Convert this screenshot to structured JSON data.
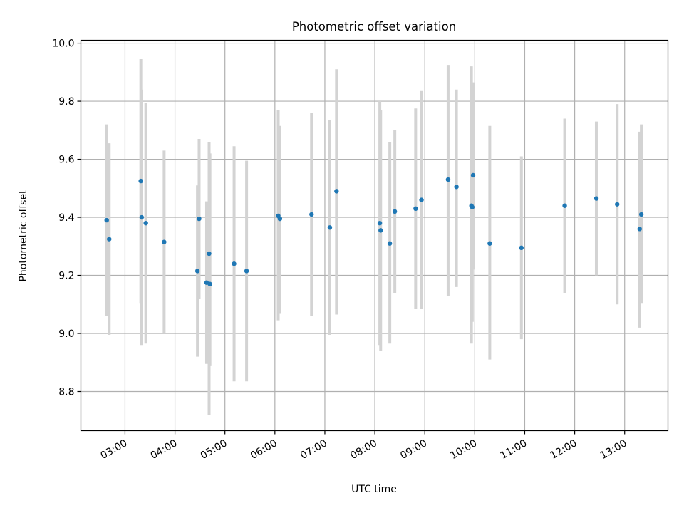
{
  "chart_data": {
    "type": "scatter",
    "title": "Photometric offset variation",
    "xlabel": "UTC time",
    "ylabel": "Photometric offset",
    "x_ticks": [
      "03:00",
      "04:00",
      "05:00",
      "06:00",
      "07:00",
      "08:00",
      "09:00",
      "10:00",
      "11:00",
      "12:00",
      "13:00"
    ],
    "y_ticks": [
      "8.8",
      "9.0",
      "9.2",
      "9.4",
      "9.6",
      "9.8",
      "10.0"
    ],
    "xlim": [
      "02:07",
      "13:52"
    ],
    "ylim": [
      8.665,
      10.01
    ],
    "grid": true,
    "colors": {
      "point": "#1f77b4",
      "errorbar": "#d3d3d3",
      "grid": "#b0b0b0"
    },
    "points": [
      {
        "t": "02:38",
        "y": 9.39,
        "ylo": 9.06,
        "yhi": 9.72
      },
      {
        "t": "02:41",
        "y": 9.325,
        "ylo": 8.995,
        "yhi": 9.655
      },
      {
        "t": "03:19",
        "y": 9.525,
        "ylo": 9.105,
        "yhi": 9.945
      },
      {
        "t": "03:20",
        "y": 9.4,
        "ylo": 8.96,
        "yhi": 9.84
      },
      {
        "t": "03:25",
        "y": 9.38,
        "ylo": 8.965,
        "yhi": 9.795
      },
      {
        "t": "03:47",
        "y": 9.315,
        "ylo": 9.0,
        "yhi": 9.63
      },
      {
        "t": "04:27",
        "y": 9.215,
        "ylo": 8.92,
        "yhi": 9.51
      },
      {
        "t": "04:29",
        "y": 9.395,
        "ylo": 9.12,
        "yhi": 9.67
      },
      {
        "t": "04:38",
        "y": 9.175,
        "ylo": 8.895,
        "yhi": 9.455
      },
      {
        "t": "04:41",
        "y": 9.275,
        "ylo": 8.72,
        "yhi": 9.66
      },
      {
        "t": "04:42",
        "y": 9.17,
        "ylo": 8.89,
        "yhi": 9.62
      },
      {
        "t": "05:11",
        "y": 9.24,
        "ylo": 8.835,
        "yhi": 9.645
      },
      {
        "t": "05:26",
        "y": 9.215,
        "ylo": 8.835,
        "yhi": 9.595
      },
      {
        "t": "06:04",
        "y": 9.405,
        "ylo": 9.045,
        "yhi": 9.77
      },
      {
        "t": "06:06",
        "y": 9.395,
        "ylo": 9.07,
        "yhi": 9.715
      },
      {
        "t": "06:44",
        "y": 9.41,
        "ylo": 9.06,
        "yhi": 9.76
      },
      {
        "t": "07:06",
        "y": 9.365,
        "ylo": 8.995,
        "yhi": 9.735
      },
      {
        "t": "07:14",
        "y": 9.49,
        "ylo": 9.065,
        "yhi": 9.91
      },
      {
        "t": "08:06",
        "y": 9.38,
        "ylo": 8.96,
        "yhi": 9.8
      },
      {
        "t": "08:07",
        "y": 9.355,
        "ylo": 8.94,
        "yhi": 9.77
      },
      {
        "t": "08:18",
        "y": 9.31,
        "ylo": 8.965,
        "yhi": 9.66
      },
      {
        "t": "08:24",
        "y": 9.42,
        "ylo": 9.14,
        "yhi": 9.7
      },
      {
        "t": "08:49",
        "y": 9.43,
        "ylo": 9.085,
        "yhi": 9.775
      },
      {
        "t": "08:56",
        "y": 9.46,
        "ylo": 9.085,
        "yhi": 9.835
      },
      {
        "t": "09:28",
        "y": 9.53,
        "ylo": 9.13,
        "yhi": 9.925
      },
      {
        "t": "09:38",
        "y": 9.505,
        "ylo": 9.16,
        "yhi": 9.84
      },
      {
        "t": "09:56",
        "y": 9.44,
        "ylo": 8.965,
        "yhi": 9.92
      },
      {
        "t": "09:57",
        "y": 9.435,
        "ylo": 9.04,
        "yhi": 9.83
      },
      {
        "t": "09:58",
        "y": 9.545,
        "ylo": 9.22,
        "yhi": 9.865
      },
      {
        "t": "10:18",
        "y": 9.31,
        "ylo": 8.91,
        "yhi": 9.715
      },
      {
        "t": "10:56",
        "y": 9.295,
        "ylo": 8.98,
        "yhi": 9.61
      },
      {
        "t": "11:48",
        "y": 9.44,
        "ylo": 9.14,
        "yhi": 9.74
      },
      {
        "t": "12:26",
        "y": 9.465,
        "ylo": 9.2,
        "yhi": 9.73
      },
      {
        "t": "12:51",
        "y": 9.445,
        "ylo": 9.1,
        "yhi": 9.79
      },
      {
        "t": "13:18",
        "y": 9.36,
        "ylo": 9.02,
        "yhi": 9.695
      },
      {
        "t": "13:20",
        "y": 9.41,
        "ylo": 9.105,
        "yhi": 9.72
      }
    ]
  }
}
